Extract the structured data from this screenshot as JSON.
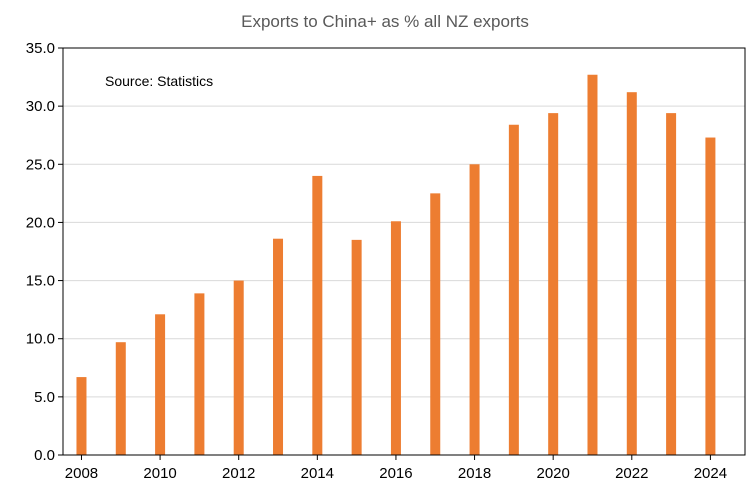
{
  "chart_data": {
    "type": "bar",
    "title": "Exports to China+ as % all NZ exports",
    "annotation": "Source: Statistics",
    "xlabel": "",
    "ylabel": "",
    "categories": [
      "2008",
      "2009",
      "2010",
      "2011",
      "2012",
      "2013",
      "2014",
      "2015",
      "2016",
      "2017",
      "2018",
      "2019",
      "2020",
      "2021",
      "2022",
      "2023",
      "2024"
    ],
    "values": [
      6.7,
      9.7,
      12.1,
      13.9,
      15.0,
      18.6,
      24.0,
      18.5,
      20.1,
      22.5,
      25.0,
      28.4,
      29.4,
      32.7,
      31.2,
      29.4,
      27.3
    ],
    "ylim": [
      0,
      35
    ],
    "yticks": [
      "0.0",
      "5.0",
      "10.0",
      "15.0",
      "20.0",
      "25.0",
      "30.0",
      "35.0"
    ],
    "xticks": [
      "2008",
      "2010",
      "2012",
      "2014",
      "2016",
      "2018",
      "2020",
      "2022",
      "2024"
    ],
    "bar_color": "#ED7D31",
    "grid": true,
    "legend": "none"
  }
}
